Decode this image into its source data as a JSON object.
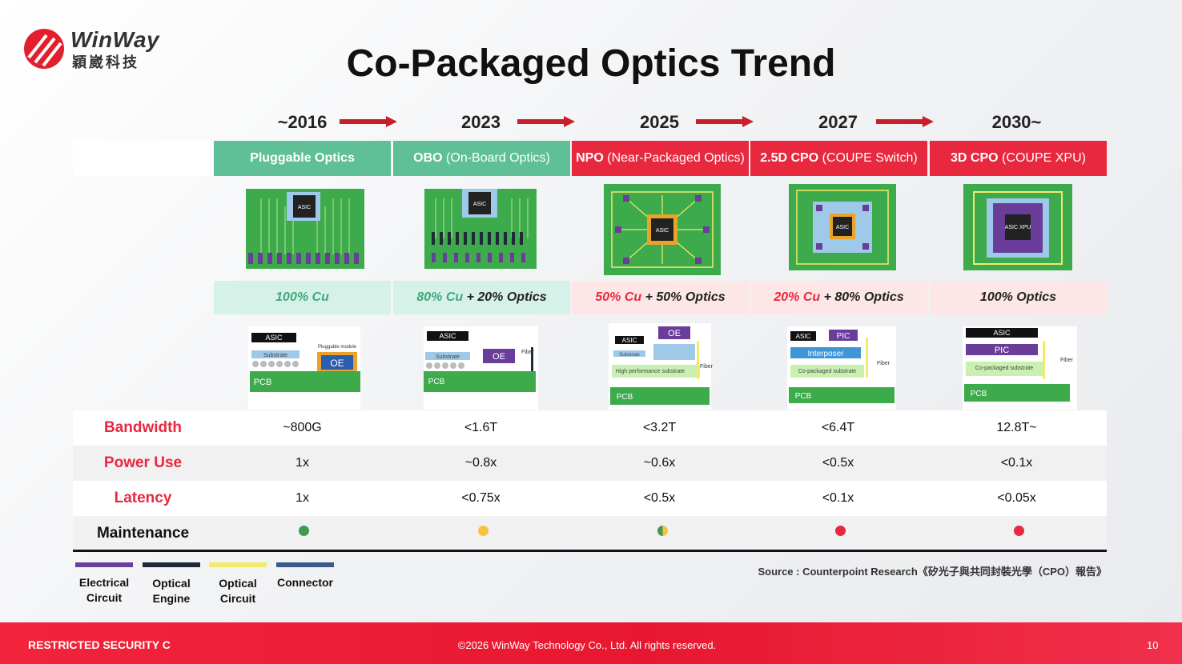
{
  "brand": {
    "name_en": "WinWay",
    "name_zh": "穎崴科技",
    "accent": "#e8283e"
  },
  "title": "Co-Packaged Optics Trend",
  "stages": [
    {
      "year": "~2016",
      "name_bold": "Pluggable Optics",
      "name_rest": "",
      "cu": "100% Cu",
      "optics": "",
      "theme": "green",
      "chip": "ASIC",
      "stack_top": "ASIC",
      "stack_mid": "Substrate",
      "stack_module": "Pluggable module",
      "stack_oe": "OE",
      "stack_base": "PCB",
      "stack_fiber": ""
    },
    {
      "year": "2023",
      "name_bold": "OBO",
      "name_rest": " (On-Board Optics)",
      "cu": "80% Cu",
      "optics": " + 20% Optics",
      "theme": "green",
      "chip": "ASIC",
      "stack_top": "ASIC",
      "stack_mid": "Substrate",
      "stack_module": "",
      "stack_oe": "OE",
      "stack_base": "PCB",
      "stack_fiber": "Fiber"
    },
    {
      "year": "2025",
      "name_bold": "NPO",
      "name_rest": " (Near-Packaged Optics)",
      "cu": "50% Cu",
      "optics": " + 50% Optics",
      "theme": "red",
      "chip": "ASIC",
      "stack_top": "ASIC",
      "stack_mid": "Substrate",
      "stack_module": "High performance substrate",
      "stack_oe": "OE",
      "stack_base": "PCB",
      "stack_fiber": "Fiber"
    },
    {
      "year": "2027",
      "name_bold": "2.5D CPO",
      "name_rest": " (COUPE Switch)",
      "cu": "20% Cu",
      "optics": " + 80% Optics",
      "theme": "red",
      "chip": "ASIC",
      "stack_top": "ASIC",
      "stack_mid": "Interposer",
      "stack_module": "Co-packaged substrate",
      "stack_oe": "PIC",
      "stack_base": "PCB",
      "stack_fiber": "Fiber"
    },
    {
      "year": "2030~",
      "name_bold": "3D CPO",
      "name_rest": " (COUPE XPU)",
      "cu": "",
      "optics": "100% Optics",
      "theme": "red",
      "chip": "ASIC XPU",
      "stack_top": "ASIC",
      "stack_mid": "PIC",
      "stack_module": "Co-packaged substrate",
      "stack_oe": "",
      "stack_base": "PCB",
      "stack_fiber": "Fiber"
    }
  ],
  "metrics": [
    {
      "label": "Bandwidth",
      "values": [
        "~800G",
        "<1.6T",
        "<3.2T",
        "<6.4T",
        "12.8T~"
      ]
    },
    {
      "label": "Power Use",
      "values": [
        "1x",
        "~0.8x",
        "~0.6x",
        "<0.5x",
        "<0.1x"
      ]
    },
    {
      "label": "Latency",
      "values": [
        "1x",
        "<0.75x",
        "<0.5x",
        "<0.1x",
        "<0.05x"
      ]
    }
  ],
  "maintenance": {
    "label": "Maintenance",
    "status_colors": [
      "#3f9b4f",
      "#f5c242",
      "mixed",
      "#e8283e",
      "#e8283e"
    ]
  },
  "legend": [
    {
      "line1": "Electrical",
      "line2": "Circuit",
      "color": "#6a3d9a"
    },
    {
      "line1": "Optical",
      "line2": "Engine",
      "color": "#1e2a38"
    },
    {
      "line1": "Optical",
      "line2": "Circuit",
      "color": "#f2ea6b"
    },
    {
      "line1": "Connector",
      "line2": "",
      "color": "#3a5a8c"
    }
  ],
  "source": "Source : Counterpoint Research《矽光子與共同封裝光學（CPO）報告》",
  "footer": {
    "left": "RESTRICTED SECURITY C",
    "center": "©2026 WinWay Technology Co., Ltd. All rights reserved.",
    "page": "10"
  }
}
